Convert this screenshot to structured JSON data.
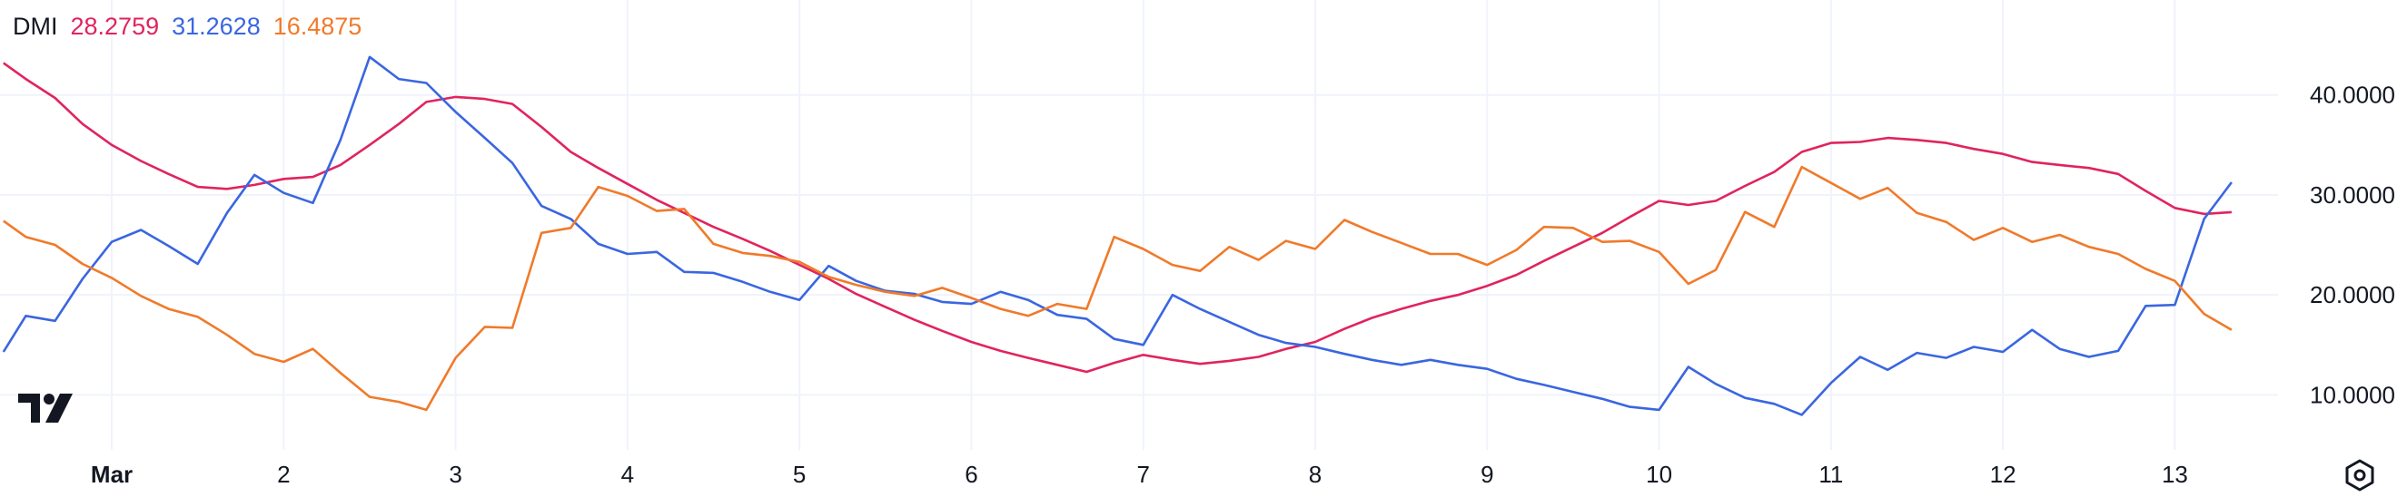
{
  "legend": {
    "name": "DMI",
    "values": [
      "28.2759",
      "31.2628",
      "16.4875"
    ]
  },
  "colors": {
    "series1": "#e0245e",
    "series2": "#3a66e0",
    "series3": "#f07a2a",
    "grid": "#f0f3fa",
    "axis_text": "#131722"
  },
  "icons": {
    "logo": "tradingview-logo",
    "settings": "settings-icon"
  },
  "chart_data": {
    "type": "line",
    "x_ticks": [
      {
        "x": 1,
        "label": "Mar"
      },
      {
        "x": 2,
        "label": "2"
      },
      {
        "x": 3,
        "label": "3"
      },
      {
        "x": 4,
        "label": "4"
      },
      {
        "x": 5,
        "label": "5"
      },
      {
        "x": 6,
        "label": "6"
      },
      {
        "x": 7,
        "label": "7"
      },
      {
        "x": 8,
        "label": "8"
      },
      {
        "x": 9,
        "label": "9"
      },
      {
        "x": 10,
        "label": "10"
      },
      {
        "x": 11,
        "label": "11"
      },
      {
        "x": 12,
        "label": "12"
      },
      {
        "x": 13,
        "label": "13"
      }
    ],
    "y_ticks": [
      "10.0000",
      "20.0000",
      "30.0000",
      "40.0000"
    ],
    "xlim": [
      0.35,
      13.6
    ],
    "ylim": [
      4.5,
      49.5
    ],
    "series": [
      {
        "color": "#e0245e",
        "points": [
          [
            0.37,
            43.2
          ],
          [
            0.5,
            41.6
          ],
          [
            0.67,
            39.7
          ],
          [
            0.83,
            37.1
          ],
          [
            1.0,
            35.0
          ],
          [
            1.17,
            33.4
          ],
          [
            1.33,
            32.1
          ],
          [
            1.5,
            30.8
          ],
          [
            1.67,
            30.6
          ],
          [
            1.83,
            31.0
          ],
          [
            2.0,
            31.6
          ],
          [
            2.17,
            31.8
          ],
          [
            2.33,
            33.0
          ],
          [
            2.5,
            35.0
          ],
          [
            2.67,
            37.1
          ],
          [
            2.83,
            39.3
          ],
          [
            3.0,
            39.8
          ],
          [
            3.17,
            39.6
          ],
          [
            3.33,
            39.1
          ],
          [
            3.5,
            36.8
          ],
          [
            3.67,
            34.3
          ],
          [
            3.83,
            32.7
          ],
          [
            4.0,
            31.1
          ],
          [
            4.17,
            29.5
          ],
          [
            4.33,
            28.2
          ],
          [
            4.5,
            26.8
          ],
          [
            4.67,
            25.6
          ],
          [
            4.83,
            24.4
          ],
          [
            5.0,
            23.0
          ],
          [
            5.17,
            21.6
          ],
          [
            5.33,
            20.1
          ],
          [
            5.5,
            18.8
          ],
          [
            5.67,
            17.5
          ],
          [
            5.83,
            16.4
          ],
          [
            6.0,
            15.3
          ],
          [
            6.17,
            14.4
          ],
          [
            6.33,
            13.7
          ],
          [
            6.5,
            13.0
          ],
          [
            6.67,
            12.3
          ],
          [
            6.83,
            13.2
          ],
          [
            7.0,
            14.0
          ],
          [
            7.17,
            13.5
          ],
          [
            7.33,
            13.1
          ],
          [
            7.5,
            13.4
          ],
          [
            7.67,
            13.8
          ],
          [
            7.83,
            14.6
          ],
          [
            8.0,
            15.3
          ],
          [
            8.17,
            16.6
          ],
          [
            8.33,
            17.7
          ],
          [
            8.5,
            18.6
          ],
          [
            8.67,
            19.4
          ],
          [
            8.83,
            20.0
          ],
          [
            9.0,
            20.9
          ],
          [
            9.17,
            22.0
          ],
          [
            9.33,
            23.4
          ],
          [
            9.5,
            24.8
          ],
          [
            9.67,
            26.2
          ],
          [
            9.83,
            27.8
          ],
          [
            10.0,
            29.4
          ],
          [
            10.17,
            29.0
          ],
          [
            10.33,
            29.4
          ],
          [
            10.5,
            30.9
          ],
          [
            10.67,
            32.3
          ],
          [
            10.83,
            34.3
          ],
          [
            11.0,
            35.2
          ],
          [
            11.17,
            35.3
          ],
          [
            11.33,
            35.7
          ],
          [
            11.5,
            35.5
          ],
          [
            11.67,
            35.2
          ],
          [
            11.83,
            34.6
          ],
          [
            12.0,
            34.1
          ],
          [
            12.17,
            33.3
          ],
          [
            12.33,
            33.0
          ],
          [
            12.5,
            32.7
          ],
          [
            12.67,
            32.1
          ],
          [
            12.83,
            30.4
          ],
          [
            13.0,
            28.7
          ],
          [
            13.17,
            28.1
          ],
          [
            13.33,
            28.28
          ]
        ]
      },
      {
        "color": "#3a66e0",
        "points": [
          [
            0.37,
            14.3
          ],
          [
            0.5,
            17.9
          ],
          [
            0.67,
            17.4
          ],
          [
            0.83,
            21.6
          ],
          [
            1.0,
            25.3
          ],
          [
            1.17,
            26.5
          ],
          [
            1.33,
            24.9
          ],
          [
            1.5,
            23.1
          ],
          [
            1.67,
            28.2
          ],
          [
            1.83,
            32.0
          ],
          [
            2.0,
            30.2
          ],
          [
            2.17,
            29.2
          ],
          [
            2.33,
            35.5
          ],
          [
            2.5,
            43.8
          ],
          [
            2.67,
            41.6
          ],
          [
            2.83,
            41.2
          ],
          [
            3.0,
            38.3
          ],
          [
            3.17,
            35.7
          ],
          [
            3.33,
            33.2
          ],
          [
            3.5,
            28.9
          ],
          [
            3.67,
            27.6
          ],
          [
            3.83,
            25.1
          ],
          [
            4.0,
            24.1
          ],
          [
            4.17,
            24.3
          ],
          [
            4.33,
            22.3
          ],
          [
            4.5,
            22.2
          ],
          [
            4.67,
            21.3
          ],
          [
            4.83,
            20.3
          ],
          [
            5.0,
            19.5
          ],
          [
            5.17,
            22.9
          ],
          [
            5.33,
            21.4
          ],
          [
            5.5,
            20.4
          ],
          [
            5.67,
            20.1
          ],
          [
            5.83,
            19.3
          ],
          [
            6.0,
            19.1
          ],
          [
            6.17,
            20.3
          ],
          [
            6.33,
            19.5
          ],
          [
            6.5,
            18.0
          ],
          [
            6.67,
            17.6
          ],
          [
            6.83,
            15.6
          ],
          [
            7.0,
            15.0
          ],
          [
            7.17,
            20.0
          ],
          [
            7.33,
            18.6
          ],
          [
            7.5,
            17.3
          ],
          [
            7.67,
            16.0
          ],
          [
            7.83,
            15.2
          ],
          [
            8.0,
            14.8
          ],
          [
            8.17,
            14.1
          ],
          [
            8.33,
            13.5
          ],
          [
            8.5,
            13.0
          ],
          [
            8.67,
            13.5
          ],
          [
            8.83,
            13.0
          ],
          [
            9.0,
            12.6
          ],
          [
            9.17,
            11.6
          ],
          [
            9.33,
            11.0
          ],
          [
            9.5,
            10.3
          ],
          [
            9.67,
            9.6
          ],
          [
            9.83,
            8.8
          ],
          [
            10.0,
            8.5
          ],
          [
            10.17,
            12.8
          ],
          [
            10.33,
            11.1
          ],
          [
            10.5,
            9.7
          ],
          [
            10.67,
            9.1
          ],
          [
            10.83,
            8.0
          ],
          [
            11.0,
            11.2
          ],
          [
            11.17,
            13.8
          ],
          [
            11.33,
            12.5
          ],
          [
            11.5,
            14.2
          ],
          [
            11.67,
            13.7
          ],
          [
            11.83,
            14.8
          ],
          [
            12.0,
            14.3
          ],
          [
            12.17,
            16.5
          ],
          [
            12.33,
            14.6
          ],
          [
            12.5,
            13.8
          ],
          [
            12.67,
            14.4
          ],
          [
            12.83,
            18.9
          ],
          [
            13.0,
            19.0
          ],
          [
            13.17,
            27.6
          ],
          [
            13.33,
            31.26
          ]
        ]
      },
      {
        "color": "#f07a2a",
        "points": [
          [
            0.37,
            27.4
          ],
          [
            0.5,
            25.8
          ],
          [
            0.67,
            25.0
          ],
          [
            0.83,
            23.1
          ],
          [
            1.0,
            21.7
          ],
          [
            1.17,
            19.9
          ],
          [
            1.33,
            18.6
          ],
          [
            1.5,
            17.8
          ],
          [
            1.67,
            16.0
          ],
          [
            1.83,
            14.1
          ],
          [
            2.0,
            13.3
          ],
          [
            2.17,
            14.6
          ],
          [
            2.33,
            12.2
          ],
          [
            2.5,
            9.8
          ],
          [
            2.67,
            9.3
          ],
          [
            2.83,
            8.5
          ],
          [
            3.0,
            13.7
          ],
          [
            3.17,
            16.8
          ],
          [
            3.33,
            16.7
          ],
          [
            3.5,
            26.2
          ],
          [
            3.67,
            26.7
          ],
          [
            3.83,
            30.8
          ],
          [
            4.0,
            29.9
          ],
          [
            4.17,
            28.4
          ],
          [
            4.33,
            28.6
          ],
          [
            4.5,
            25.1
          ],
          [
            4.67,
            24.2
          ],
          [
            4.83,
            23.9
          ],
          [
            5.0,
            23.3
          ],
          [
            5.17,
            21.8
          ],
          [
            5.33,
            21.0
          ],
          [
            5.5,
            20.3
          ],
          [
            5.67,
            19.9
          ],
          [
            5.83,
            20.7
          ],
          [
            6.0,
            19.7
          ],
          [
            6.17,
            18.6
          ],
          [
            6.33,
            17.9
          ],
          [
            6.5,
            19.1
          ],
          [
            6.67,
            18.6
          ],
          [
            6.83,
            25.8
          ],
          [
            7.0,
            24.6
          ],
          [
            7.17,
            23.0
          ],
          [
            7.33,
            22.4
          ],
          [
            7.5,
            24.8
          ],
          [
            7.67,
            23.5
          ],
          [
            7.83,
            25.4
          ],
          [
            8.0,
            24.6
          ],
          [
            8.17,
            27.5
          ],
          [
            8.33,
            26.3
          ],
          [
            8.5,
            25.2
          ],
          [
            8.67,
            24.1
          ],
          [
            8.83,
            24.1
          ],
          [
            9.0,
            23.0
          ],
          [
            9.17,
            24.5
          ],
          [
            9.33,
            26.8
          ],
          [
            9.5,
            26.7
          ],
          [
            9.67,
            25.3
          ],
          [
            9.83,
            25.4
          ],
          [
            10.0,
            24.3
          ],
          [
            10.17,
            21.1
          ],
          [
            10.33,
            22.5
          ],
          [
            10.5,
            28.3
          ],
          [
            10.67,
            26.8
          ],
          [
            10.83,
            32.8
          ],
          [
            11.0,
            31.2
          ],
          [
            11.17,
            29.6
          ],
          [
            11.33,
            30.7
          ],
          [
            11.5,
            28.2
          ],
          [
            11.67,
            27.3
          ],
          [
            11.83,
            25.5
          ],
          [
            12.0,
            26.7
          ],
          [
            12.17,
            25.3
          ],
          [
            12.33,
            26.0
          ],
          [
            12.5,
            24.8
          ],
          [
            12.67,
            24.1
          ],
          [
            12.83,
            22.6
          ],
          [
            13.0,
            21.4
          ],
          [
            13.17,
            18.1
          ],
          [
            13.33,
            16.49
          ]
        ]
      }
    ]
  }
}
